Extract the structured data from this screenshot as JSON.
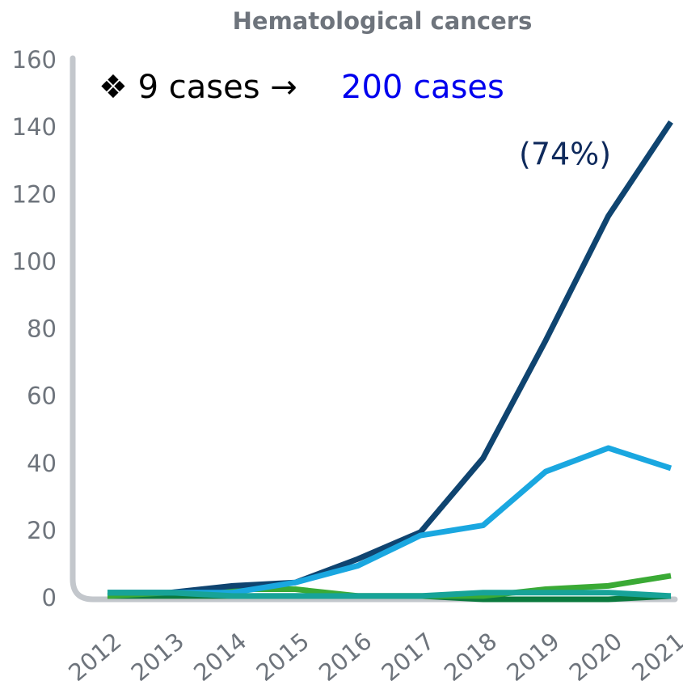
{
  "chart_data": {
    "type": "line",
    "title": "Hematological cancers",
    "annotations": [
      "❖ 9 cases →",
      "200 cases",
      "(74%)"
    ],
    "categories": [
      "2012",
      "2013",
      "2014",
      "2015",
      "2016",
      "2017",
      "2018",
      "2019",
      "2020",
      "2021"
    ],
    "series": [
      {
        "color": "#0b7a3e",
        "values": [
          1,
          1,
          1,
          1,
          1,
          1,
          0,
          0,
          0,
          1
        ]
      },
      {
        "color": "#3aaa35",
        "values": [
          1,
          2,
          3,
          3,
          1,
          1,
          1,
          3,
          4,
          7
        ]
      },
      {
        "color": "#0f4470",
        "values": [
          2,
          2,
          4,
          5,
          12,
          20,
          42,
          77,
          114,
          142
        ]
      },
      {
        "color": "#1aa7e0",
        "values": [
          2,
          2,
          2,
          5,
          10,
          19,
          22,
          38,
          45,
          39
        ]
      },
      {
        "color": "#17a398",
        "values": [
          2,
          2,
          1,
          1,
          1,
          1,
          2,
          2,
          2,
          1
        ]
      }
    ],
    "ylim": [
      0,
      160
    ],
    "yticks": [
      0,
      20,
      40,
      60,
      80,
      100,
      120,
      140,
      160
    ]
  }
}
